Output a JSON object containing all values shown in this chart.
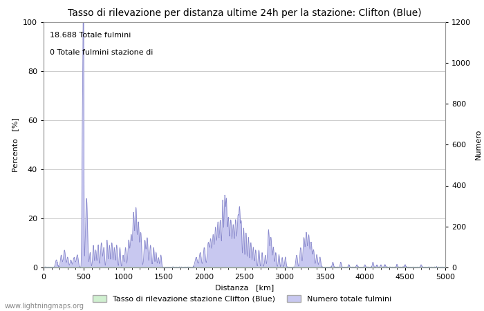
{
  "title": "Tasso di rilevazione per distanza ultime 24h per la stazione: Clifton (Blue)",
  "xlabel": "Distanza   [km]",
  "ylabel_left": "Percento   [%]",
  "ylabel_right": "Numero",
  "annotation_line1": "18.688 Totale fulmini",
  "annotation_line2": "0 Totale fulmini stazione di",
  "watermark": "www.lightningmaps.org",
  "xlim": [
    0,
    5000
  ],
  "ylim_left": [
    0,
    100
  ],
  "ylim_right": [
    0,
    1200
  ],
  "xticks": [
    0,
    500,
    1000,
    1500,
    2000,
    2500,
    3000,
    3500,
    4000,
    4500,
    5000
  ],
  "yticks_left": [
    0,
    20,
    40,
    60,
    80,
    100
  ],
  "yticks_right": [
    0,
    200,
    400,
    600,
    800,
    1000,
    1200
  ],
  "legend_green_label": "Tasso di rilevazione stazione Clifton (Blue)",
  "legend_blue_label": "Numero totale fulmini",
  "fill_color_blue": "#c8c8f0",
  "fill_color_green": "#d0f0d0",
  "line_color_blue": "#8888cc",
  "line_color_green": "#88cc88",
  "background_color": "#ffffff",
  "grid_color": "#cccccc",
  "title_fontsize": 10,
  "label_fontsize": 8,
  "tick_fontsize": 8,
  "annotation_fontsize": 8
}
